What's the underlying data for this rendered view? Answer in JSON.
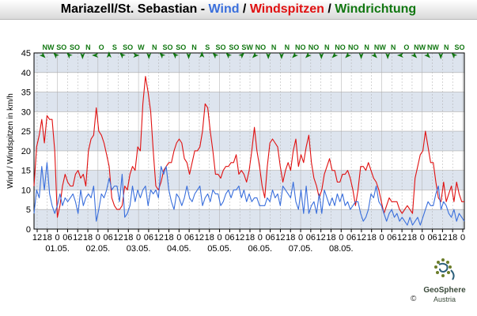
{
  "title": {
    "station": "Mariazell/St. Sebastian",
    "sep1": " - ",
    "wind": "Wind",
    "sep2": " / ",
    "gusts": "Windspitzen",
    "sep3": " / ",
    "direction": "Windrichtung"
  },
  "colors": {
    "wind": "#3a6fdc",
    "gusts": "#e01010",
    "direction": "#117711",
    "band": "#dde4ee",
    "grid": "#aaaaaa"
  },
  "logo": {
    "name": "GeoSphere",
    "country": "Austria",
    "copyright": "©"
  },
  "chart_data": {
    "type": "line",
    "ylabel": "Wind / Windspitzen in km/h",
    "ylim": [
      0,
      45
    ],
    "yticks": [
      0,
      5,
      10,
      15,
      20,
      25,
      30,
      35,
      40,
      45
    ],
    "x_tick_labels": [
      "12",
      "18",
      "0",
      "06",
      "12",
      "18",
      "0",
      "06",
      "12",
      "18",
      "0",
      "06",
      "12",
      "18",
      "0",
      "06",
      "12",
      "18",
      "0",
      "06",
      "12",
      "18",
      "0",
      "06",
      "12",
      "18",
      "0",
      "06",
      "12",
      "18",
      "0",
      "06",
      "12",
      "18",
      "0",
      "06",
      "12",
      "18",
      "0",
      "06",
      "12",
      "18",
      "0"
    ],
    "date_labels": [
      "01.05.",
      "02.05.",
      "03.05.",
      "04.05.",
      "05.05.",
      "06.05.",
      "07.05.",
      "08.05."
    ],
    "direction_labels": [
      "NW",
      "SO",
      "SO",
      "N",
      "O",
      "S",
      "SO",
      "W",
      "N",
      "SO",
      "SO",
      "N",
      "S",
      "SO",
      "SO",
      "SW",
      "NO",
      "N",
      "N",
      "NO",
      "NO",
      "N",
      "NO",
      "NO",
      "N",
      "NW",
      "N",
      "O",
      "NW",
      "NW",
      "N",
      "SO"
    ],
    "series": [
      {
        "name": "Wind",
        "values": [
          4,
          10,
          8,
          16,
          10,
          17,
          9,
          6,
          4,
          6,
          9,
          6,
          8,
          7,
          8,
          9,
          7,
          4,
          10,
          6,
          8,
          9,
          8,
          11,
          2,
          5,
          9,
          8,
          10,
          13,
          10,
          11,
          11,
          7,
          14,
          3,
          4,
          6,
          11,
          7,
          10,
          8,
          10,
          11,
          6,
          10,
          9,
          10,
          8,
          16,
          14,
          16,
          10,
          7,
          5,
          9,
          8,
          6,
          8,
          11,
          8,
          7,
          9,
          10,
          11,
          6,
          8,
          9,
          7,
          10,
          9,
          9,
          6,
          7,
          9,
          10,
          8,
          10,
          10,
          11,
          8,
          10,
          7,
          9,
          7,
          8,
          8,
          6,
          6,
          6,
          8,
          7,
          10,
          8,
          9,
          6,
          11,
          10,
          9,
          8,
          12,
          7,
          5,
          10,
          4,
          11,
          4,
          6,
          7,
          4,
          9,
          4,
          10,
          8,
          6,
          8,
          6,
          9,
          7,
          9,
          6,
          7,
          5,
          6,
          7,
          7,
          4,
          2,
          3,
          5,
          9,
          8,
          11,
          7,
          6,
          4,
          2,
          4,
          5,
          3,
          4,
          2,
          3,
          2,
          1,
          3,
          1,
          2,
          3,
          1,
          3,
          5,
          7,
          6,
          6,
          9,
          11,
          5,
          7,
          6,
          4,
          3,
          5,
          2,
          4,
          3,
          2
        ],
        "color": "#3a6fdc"
      },
      {
        "name": "Windspitzen",
        "values": [
          11,
          21,
          24,
          28,
          22,
          29,
          28,
          28,
          20,
          3,
          6,
          11,
          14,
          12,
          11,
          11,
          14,
          15,
          13,
          14,
          11,
          20,
          23,
          24,
          31,
          25,
          24,
          22,
          19,
          16,
          8,
          6,
          5,
          5,
          6,
          11,
          10,
          14,
          16,
          15,
          21,
          20,
          32,
          39,
          35,
          30,
          20,
          11,
          10,
          12,
          15,
          16,
          17,
          17,
          20,
          22,
          23,
          22,
          18,
          17,
          14,
          17,
          20,
          20,
          21,
          25,
          32,
          31,
          25,
          20,
          14,
          14,
          13,
          15,
          16,
          16,
          17,
          17,
          19,
          14,
          15,
          14,
          12,
          15,
          20,
          26,
          20,
          16,
          11,
          8,
          16,
          22,
          23,
          22,
          21,
          16,
          12,
          15,
          17,
          15,
          20,
          23,
          16,
          19,
          17,
          21,
          24,
          17,
          13,
          11,
          8,
          10,
          14,
          16,
          18,
          15,
          15,
          12,
          12,
          14,
          14,
          15,
          13,
          10,
          6,
          10,
          16,
          16,
          15,
          17,
          15,
          13,
          12,
          10,
          7,
          4,
          6,
          8,
          7,
          7,
          7,
          5,
          4,
          5,
          6,
          5,
          4,
          13,
          16,
          19,
          20,
          25,
          21,
          17,
          17,
          12,
          8,
          7,
          12,
          7,
          9,
          11,
          7,
          12,
          9,
          7,
          7
        ],
        "color": "#e01010"
      }
    ],
    "grid": true,
    "legend": "none"
  }
}
